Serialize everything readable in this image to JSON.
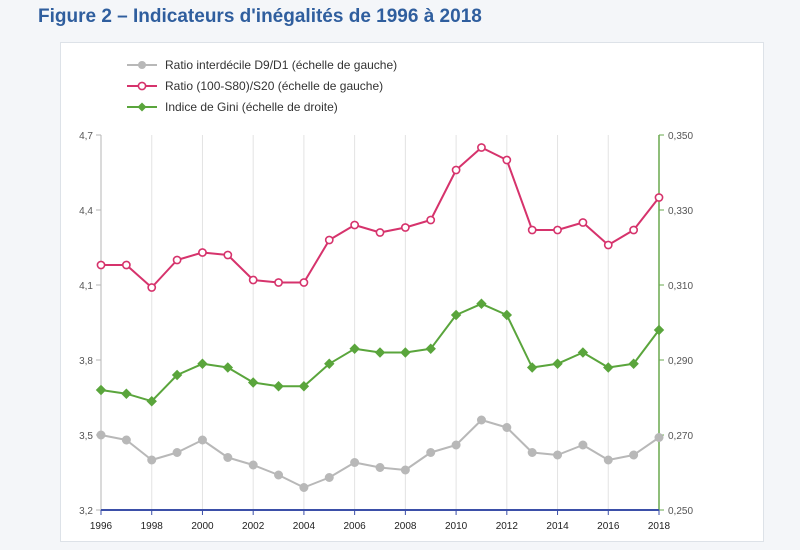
{
  "title": "Figure 2 – Indicateurs d'inégalités de 1996 à 2018",
  "chart_data": {
    "type": "line",
    "x": [
      1996,
      1997,
      1998,
      1999,
      2000,
      2001,
      2002,
      2003,
      2004,
      2005,
      2006,
      2007,
      2008,
      2009,
      2010,
      2011,
      2012,
      2013,
      2014,
      2015,
      2016,
      2017,
      2018
    ],
    "x_tick_labels": [
      "1996",
      "1998",
      "2000",
      "2002",
      "2004",
      "2006",
      "2008",
      "2010",
      "2012",
      "2014",
      "2016",
      "2018"
    ],
    "y_left": {
      "ylim": [
        3.2,
        4.7
      ],
      "tick_labels": [
        "3,2",
        "3,5",
        "3,8",
        "4,1",
        "4,4",
        "4,7"
      ]
    },
    "y_right": {
      "ylim": [
        0.25,
        0.35
      ],
      "tick_labels": [
        "0,250",
        "0,270",
        "0,290",
        "0,310",
        "0,330",
        "0,350"
      ]
    },
    "legend_position": "top-left",
    "grid": {
      "vertical": true,
      "horizontal": false
    },
    "series": [
      {
        "name": "Ratio interdécile D9/D1 (échelle de gauche)",
        "axis": "left",
        "color": "#b8b8b8",
        "marker": "circle-filled",
        "values": [
          3.5,
          3.48,
          3.4,
          3.43,
          3.48,
          3.41,
          3.38,
          3.34,
          3.29,
          3.33,
          3.39,
          3.37,
          3.36,
          3.43,
          3.46,
          3.56,
          3.53,
          3.43,
          3.42,
          3.46,
          3.4,
          3.42,
          3.49
        ]
      },
      {
        "name": "Ratio (100-S80)/S20 (échelle de gauche)",
        "axis": "left",
        "color": "#d6336c",
        "marker": "circle-open",
        "values": [
          4.18,
          4.18,
          4.09,
          4.2,
          4.23,
          4.22,
          4.12,
          4.11,
          4.11,
          4.28,
          4.34,
          4.31,
          4.33,
          4.36,
          4.56,
          4.65,
          4.6,
          4.32,
          4.32,
          4.35,
          4.26,
          4.32,
          4.45
        ]
      },
      {
        "name": "Indice de Gini (échelle de droite)",
        "axis": "right",
        "color": "#5aa53c",
        "marker": "diamond",
        "values": [
          0.282,
          0.281,
          0.279,
          0.286,
          0.289,
          0.288,
          0.284,
          0.283,
          0.283,
          0.289,
          0.293,
          0.292,
          0.292,
          0.293,
          0.302,
          0.305,
          0.302,
          0.288,
          0.289,
          0.292,
          0.288,
          0.289,
          0.298
        ]
      }
    ]
  }
}
